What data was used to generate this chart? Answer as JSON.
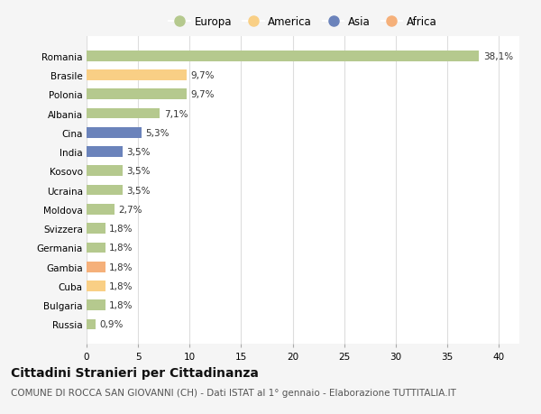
{
  "countries": [
    "Romania",
    "Brasile",
    "Polonia",
    "Albania",
    "Cina",
    "India",
    "Kosovo",
    "Ucraina",
    "Moldova",
    "Svizzera",
    "Germania",
    "Gambia",
    "Cuba",
    "Bulgaria",
    "Russia"
  ],
  "values": [
    38.1,
    9.7,
    9.7,
    7.1,
    5.3,
    3.5,
    3.5,
    3.5,
    2.7,
    1.8,
    1.8,
    1.8,
    1.8,
    1.8,
    0.9
  ],
  "labels": [
    "38,1%",
    "9,7%",
    "9,7%",
    "7,1%",
    "5,3%",
    "3,5%",
    "3,5%",
    "3,5%",
    "2,7%",
    "1,8%",
    "1,8%",
    "1,8%",
    "1,8%",
    "1,8%",
    "0,9%"
  ],
  "colors": [
    "#b5c98e",
    "#f9cf85",
    "#b5c98e",
    "#b5c98e",
    "#6b83bb",
    "#6b83bb",
    "#b5c98e",
    "#b5c98e",
    "#b5c98e",
    "#b5c98e",
    "#b5c98e",
    "#f5b07a",
    "#f9cf85",
    "#b5c98e",
    "#b5c98e"
  ],
  "legend": [
    {
      "label": "Europa",
      "color": "#b5c98e"
    },
    {
      "label": "America",
      "color": "#f9cf85"
    },
    {
      "label": "Asia",
      "color": "#6b83bb"
    },
    {
      "label": "Africa",
      "color": "#f5b07a"
    }
  ],
  "title": "Cittadini Stranieri per Cittadinanza",
  "subtitle": "COMUNE DI ROCCA SAN GIOVANNI (CH) - Dati ISTAT al 1° gennaio - Elaborazione TUTTITALIA.IT",
  "xlim": [
    0,
    42
  ],
  "xticks": [
    0,
    5,
    10,
    15,
    20,
    25,
    30,
    35,
    40
  ],
  "background_color": "#f5f5f5",
  "plot_background": "#ffffff",
  "grid_color": "#dddddd",
  "bar_height": 0.55,
  "title_fontsize": 10,
  "subtitle_fontsize": 7.5,
  "label_fontsize": 7.5,
  "tick_fontsize": 7.5,
  "legend_fontsize": 8.5
}
